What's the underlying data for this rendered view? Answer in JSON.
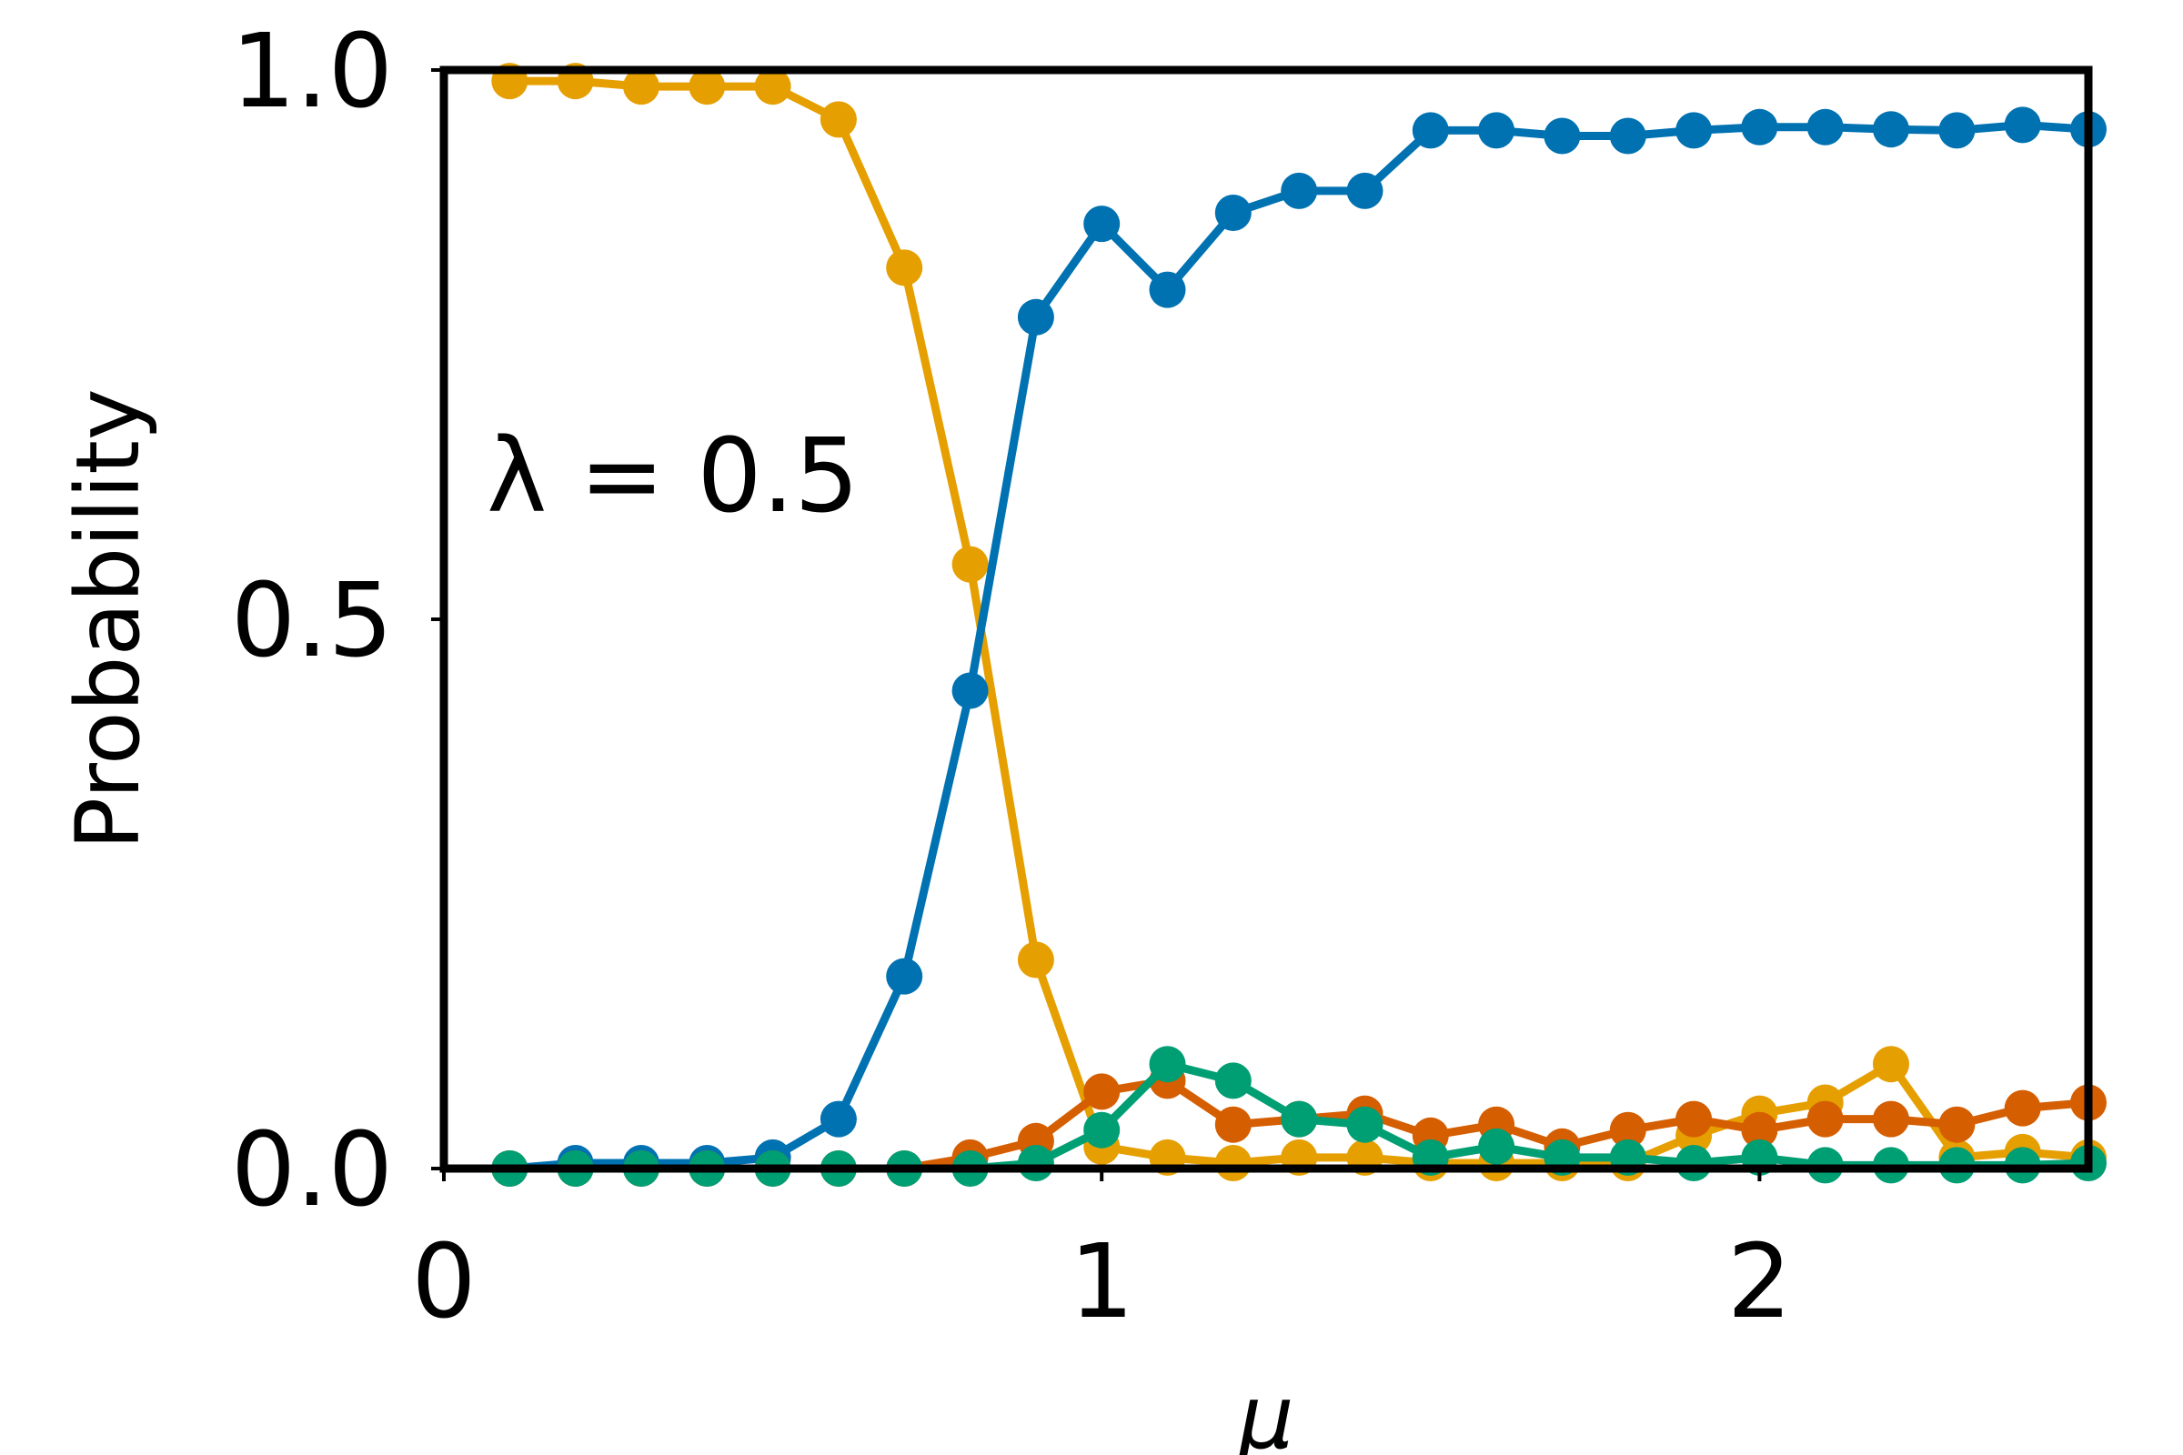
{
  "chart_data": {
    "type": "line",
    "xlabel": "μ",
    "ylabel": "Probability",
    "annotation": "λ = 0.5",
    "xlim": [
      0,
      2.5
    ],
    "ylim": [
      0,
      1.0
    ],
    "xticks": [
      0,
      1,
      2
    ],
    "xtick_labels": [
      "0",
      "1",
      "2"
    ],
    "yticks": [
      0.0,
      0.5,
      1.0
    ],
    "ytick_labels": [
      "0.0",
      "0.5",
      "1.0"
    ],
    "grid": false,
    "legend": "none",
    "x": [
      0.1,
      0.2,
      0.3,
      0.4,
      0.5,
      0.6,
      0.7,
      0.8,
      0.9,
      1.0,
      1.1,
      1.2,
      1.3,
      1.4,
      1.5,
      1.6,
      1.7,
      1.8,
      1.9,
      2.0,
      2.1,
      2.2,
      2.3,
      2.4,
      2.5
    ],
    "series": [
      {
        "color": "#E69F00",
        "values": [
          0.99,
          0.99,
          0.985,
          0.985,
          0.985,
          0.955,
          0.82,
          0.55,
          0.19,
          0.02,
          0.01,
          0.005,
          0.01,
          0.01,
          0.005,
          0.005,
          0.005,
          0.005,
          0.03,
          0.05,
          0.06,
          0.095,
          0.01,
          0.015,
          0.01
        ]
      },
      {
        "color": "#0072B2",
        "values": [
          0.0,
          0.005,
          0.005,
          0.005,
          0.01,
          0.045,
          0.175,
          0.435,
          0.775,
          0.86,
          0.8,
          0.87,
          0.89,
          0.89,
          0.945,
          0.945,
          0.94,
          0.94,
          0.945,
          0.948,
          0.948,
          0.946,
          0.945,
          0.95,
          0.946
        ]
      },
      {
        "color": "#D55E00",
        "values": [
          0.0,
          0.0,
          0.0,
          0.0,
          0.0,
          0.0,
          0.0,
          0.01,
          0.025,
          0.07,
          0.08,
          0.04,
          0.045,
          0.05,
          0.03,
          0.04,
          0.02,
          0.035,
          0.045,
          0.035,
          0.045,
          0.045,
          0.04,
          0.055,
          0.06
        ]
      },
      {
        "color": "#009E73",
        "values": [
          0.0,
          0.0,
          0.0,
          0.0,
          0.0,
          0.0,
          0.0,
          0.0,
          0.005,
          0.035,
          0.095,
          0.08,
          0.045,
          0.04,
          0.01,
          0.02,
          0.01,
          0.01,
          0.005,
          0.01,
          0.003,
          0.003,
          0.003,
          0.003,
          0.005
        ]
      }
    ]
  }
}
